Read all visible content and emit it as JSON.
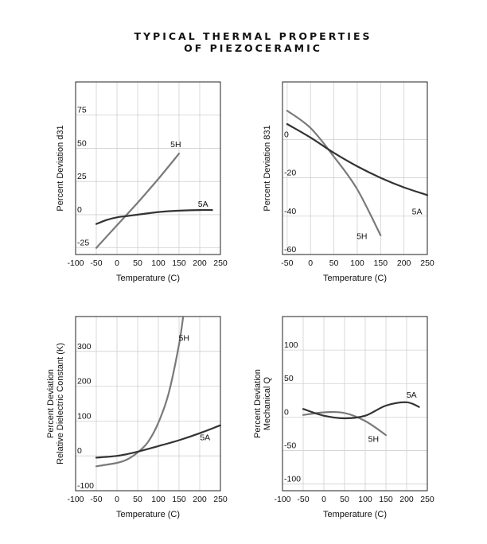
{
  "title_lines": [
    "TYPICAL THERMAL PROPERTIES",
    "OF PIEZOCERAMIC"
  ],
  "colors": {
    "5A": "#333333",
    "5H": "#7a7a7a",
    "grid": "#d0d0d0",
    "frame": "#222222"
  },
  "chart_data": [
    {
      "type": "line",
      "title": "",
      "xlabel": "Temperature (C)",
      "ylabel": "Percent Deviation d31",
      "xlim": [
        -100,
        250
      ],
      "ylim": [
        -30,
        100
      ],
      "x_ticks": [
        -100,
        -50,
        0,
        50,
        100,
        150,
        200,
        250
      ],
      "x_tick_labels": [
        "-100",
        "-50",
        "0",
        "50",
        "100",
        "150",
        "200",
        "250"
      ],
      "y_ticks": [
        -25,
        0,
        25,
        50,
        75
      ],
      "y_tick_labels": [
        "-25",
        "0",
        "25",
        "50",
        "75"
      ],
      "grid": true,
      "series": [
        {
          "name": "5H",
          "x": [
            -50,
            0,
            50,
            100,
            150
          ],
          "y": [
            -25,
            -8,
            9,
            27,
            46
          ],
          "label_at": [
            142,
            51
          ]
        },
        {
          "name": "5A",
          "x": [
            -50,
            -25,
            0,
            25,
            50,
            100,
            150,
            200,
            230
          ],
          "y": [
            -7,
            -4,
            -2,
            -1,
            0,
            2,
            3,
            3.5,
            3.5
          ],
          "label_at": [
            208,
            6
          ]
        }
      ]
    },
    {
      "type": "line",
      "title": "",
      "xlabel": "Temperature (C)",
      "ylabel": "Percent Deviation 831",
      "xlim": [
        -60,
        250
      ],
      "ylim": [
        -60,
        30
      ],
      "x_ticks": [
        -50,
        0,
        50,
        100,
        150,
        200,
        250
      ],
      "x_tick_labels": [
        "-50",
        "0",
        "50",
        "100",
        "150",
        "200",
        "250"
      ],
      "y_ticks": [
        -60,
        -40,
        -20,
        0
      ],
      "y_tick_labels": [
        "-60",
        "-40",
        "-20",
        "0"
      ],
      "grid": true,
      "series": [
        {
          "name": "5H",
          "x": [
            -50,
            0,
            50,
            100,
            150
          ],
          "y": [
            15,
            6,
            -9,
            -26,
            -50
          ],
          "label_at": [
            110,
            -52
          ]
        },
        {
          "name": "5A",
          "x": [
            -50,
            0,
            50,
            100,
            150,
            200,
            250
          ],
          "y": [
            8,
            1,
            -7,
            -14,
            -20,
            -25,
            -29
          ],
          "label_at": [
            228,
            -39
          ]
        }
      ]
    },
    {
      "type": "line",
      "title": "",
      "xlabel": "Temperature (C)",
      "ylabel": "Percent Deviation\nRelative Dielectric Constant (K)",
      "xlim": [
        -100,
        250
      ],
      "ylim": [
        -100,
        400
      ],
      "x_ticks": [
        -100,
        -50,
        0,
        50,
        100,
        150,
        200,
        250
      ],
      "x_tick_labels": [
        "-100",
        "-50",
        "0",
        "50",
        "100",
        "150",
        "200",
        "250"
      ],
      "y_ticks": [
        -100,
        0,
        100,
        200,
        300
      ],
      "y_tick_labels": [
        "-100",
        "0",
        "100",
        "200",
        "300"
      ],
      "grid": true,
      "series": [
        {
          "name": "5H",
          "x": [
            -50,
            0,
            25,
            50,
            75,
            100,
            125,
            150,
            160
          ],
          "y": [
            -30,
            -20,
            -10,
            10,
            40,
            95,
            180,
            320,
            400
          ],
          "label_at": [
            162,
            330
          ]
        },
        {
          "name": "5A",
          "x": [
            -50,
            0,
            50,
            100,
            150,
            200,
            250
          ],
          "y": [
            -5,
            0,
            12,
            28,
            45,
            65,
            88
          ],
          "label_at": [
            213,
            45
          ]
        }
      ]
    },
    {
      "type": "line",
      "title": "",
      "xlabel": "Temperature (C)",
      "ylabel": "Percent Deviation\nMechanical Q",
      "xlim": [
        -100,
        250
      ],
      "ylim": [
        -110,
        150
      ],
      "x_ticks": [
        -100,
        -50,
        0,
        50,
        100,
        150,
        200,
        250
      ],
      "x_tick_labels": [
        "-100",
        "-50",
        "0",
        "50",
        "100",
        "150",
        "200",
        "250"
      ],
      "y_ticks": [
        -100,
        -50,
        0,
        50,
        100
      ],
      "y_tick_labels": [
        "-100",
        "-50",
        "0",
        "50",
        "100"
      ],
      "grid": true,
      "series": [
        {
          "name": "5H",
          "x": [
            -50,
            0,
            50,
            100,
            150
          ],
          "y": [
            3,
            7,
            6,
            -6,
            -27
          ],
          "label_at": [
            120,
            -37
          ]
        },
        {
          "name": "5A",
          "x": [
            -50,
            0,
            50,
            100,
            150,
            200,
            230
          ],
          "y": [
            12,
            2,
            -2,
            2,
            17,
            22,
            15
          ],
          "label_at": [
            212,
            29
          ]
        }
      ]
    }
  ]
}
